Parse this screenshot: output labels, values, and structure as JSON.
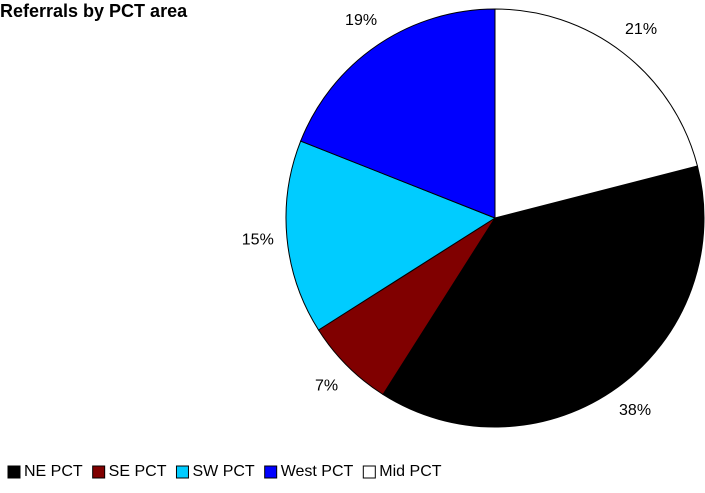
{
  "chart_data": {
    "type": "pie",
    "title": "Referrals by PCT area",
    "categories": [
      "NE PCT",
      "SE PCT",
      "SW PCT",
      "West PCT",
      "Mid PCT"
    ],
    "values": [
      38,
      7,
      15,
      19,
      21
    ],
    "value_labels": [
      "38%",
      "7%",
      "15%",
      "19%",
      "21%"
    ],
    "colors": [
      "#000000",
      "#800000",
      "#00ccff",
      "#0000ff",
      "#ffffff"
    ],
    "legend": "bottom"
  }
}
